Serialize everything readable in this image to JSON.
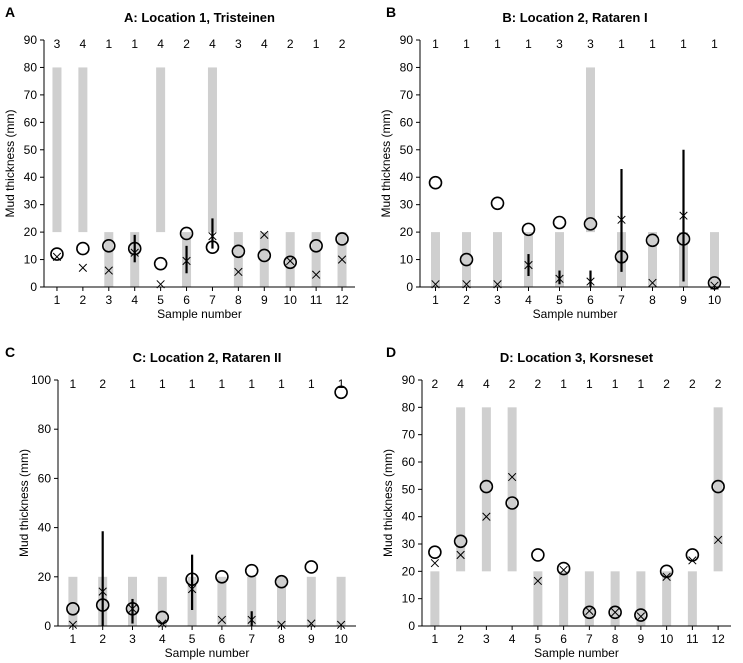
{
  "chart_data": [
    {
      "type": "scatter",
      "letter": "A",
      "title": "A: Location 1, Tristeinen",
      "xlabel": "Sample number",
      "ylabel": "Mud thickness (mm)",
      "ylim": [
        0,
        90
      ],
      "yticks": [
        0,
        10,
        20,
        30,
        40,
        50,
        60,
        70,
        80,
        90
      ],
      "categories": [
        "1",
        "2",
        "3",
        "4",
        "5",
        "6",
        "7",
        "8",
        "9",
        "10",
        "11",
        "12"
      ],
      "counts": [
        "3",
        "4",
        "1",
        "1",
        "4",
        "2",
        "4",
        "3",
        "4",
        "2",
        "1",
        "2"
      ],
      "ranges": [
        [
          20,
          80
        ],
        [
          20,
          80
        ],
        [
          0,
          20
        ],
        [
          0,
          20
        ],
        [
          20,
          80
        ],
        [
          0,
          20
        ],
        [
          20,
          80
        ],
        [
          0,
          20
        ],
        [
          0,
          20
        ],
        [
          0,
          20
        ],
        [
          0,
          20
        ],
        [
          0,
          20
        ]
      ],
      "circles": [
        12,
        14,
        15,
        14,
        8.5,
        19.5,
        14.5,
        13,
        11.5,
        9,
        15,
        17.5
      ],
      "crosses": [
        11,
        7,
        6,
        12.5,
        1,
        9.5,
        18.5,
        5.5,
        19,
        9.5,
        4.5,
        10
      ],
      "error_bars": [
        null,
        null,
        null,
        [
          9,
          19
        ],
        null,
        [
          5,
          15
        ],
        [
          14,
          25
        ],
        null,
        null,
        null,
        null,
        null
      ]
    },
    {
      "type": "scatter",
      "letter": "B",
      "title": "B: Location 2, Rataren I",
      "xlabel": "Sample number",
      "ylabel": "Mud thickness (mm)",
      "ylim": [
        0,
        90
      ],
      "yticks": [
        0,
        10,
        20,
        30,
        40,
        50,
        60,
        70,
        80,
        90
      ],
      "categories": [
        "1",
        "2",
        "3",
        "4",
        "5",
        "6",
        "7",
        "8",
        "9",
        "10"
      ],
      "counts": [
        "1",
        "1",
        "1",
        "1",
        "3",
        "3",
        "1",
        "1",
        "1",
        "1"
      ],
      "ranges": [
        [
          0,
          20
        ],
        [
          0,
          20
        ],
        [
          0,
          20
        ],
        [
          0,
          20
        ],
        [
          0,
          20
        ],
        [
          20,
          80
        ],
        [
          0,
          20
        ],
        [
          0,
          20
        ],
        [
          0,
          20
        ],
        [
          0,
          20
        ]
      ],
      "circles": [
        38,
        10,
        30.5,
        21,
        23.5,
        23,
        11,
        17,
        17.5,
        1.5
      ],
      "crosses": [
        1,
        1,
        1,
        8,
        3,
        2,
        24.5,
        1.5,
        26,
        0.5
      ],
      "error_bars": [
        null,
        null,
        null,
        [
          4,
          12
        ],
        [
          1,
          6
        ],
        [
          0,
          6
        ],
        [
          5.5,
          43
        ],
        null,
        [
          2,
          50
        ],
        null
      ]
    },
    {
      "type": "scatter",
      "letter": "C",
      "title": "C: Location 2, Rataren II",
      "xlabel": "Sample number",
      "ylabel": "Mud thickness (mm)",
      "ylim": [
        0,
        100
      ],
      "yticks": [
        0,
        20,
        40,
        60,
        80,
        100
      ],
      "categories": [
        "1",
        "2",
        "3",
        "4",
        "5",
        "6",
        "7",
        "8",
        "9",
        "10"
      ],
      "counts": [
        "1",
        "2",
        "1",
        "1",
        "1",
        "1",
        "1",
        "1",
        "1",
        "1"
      ],
      "ranges": [
        [
          0,
          20
        ],
        [
          0,
          20
        ],
        [
          0,
          20
        ],
        [
          0,
          20
        ],
        [
          0,
          20
        ],
        [
          0,
          20
        ],
        [
          0,
          20
        ],
        [
          0,
          20
        ],
        [
          0,
          20
        ],
        [
          0,
          20
        ]
      ],
      "circles": [
        7,
        8.5,
        7,
        3.5,
        19,
        20,
        22.5,
        18,
        24,
        95
      ],
      "crosses": [
        0.5,
        14,
        7,
        1,
        15,
        2.5,
        2.5,
        0.5,
        1,
        0.5
      ],
      "error_bars": [
        null,
        [
          0,
          38.5
        ],
        [
          1,
          11
        ],
        null,
        [
          6.5,
          29
        ],
        null,
        [
          0,
          6
        ],
        null,
        null,
        null
      ]
    },
    {
      "type": "scatter",
      "letter": "D",
      "title": "D: Location 3, Korsneset",
      "xlabel": "Sample number",
      "ylabel": "Mud thickness (mm)",
      "ylim": [
        0,
        90
      ],
      "yticks": [
        0,
        10,
        20,
        30,
        40,
        50,
        60,
        70,
        80,
        90
      ],
      "categories": [
        "1",
        "2",
        "3",
        "4",
        "5",
        "6",
        "7",
        "8",
        "9",
        "10",
        "11",
        "12"
      ],
      "counts": [
        "2",
        "4",
        "4",
        "2",
        "2",
        "1",
        "1",
        "1",
        "1",
        "2",
        "2",
        "2"
      ],
      "ranges": [
        [
          0,
          20
        ],
        [
          20,
          80
        ],
        [
          20,
          80
        ],
        [
          20,
          80
        ],
        [
          0,
          20
        ],
        [
          0,
          20
        ],
        [
          0,
          20
        ],
        [
          0,
          20
        ],
        [
          0,
          20
        ],
        [
          0,
          20
        ],
        [
          0,
          20
        ],
        [
          20,
          80
        ]
      ],
      "circles": [
        27,
        31,
        51,
        45,
        26,
        21,
        5,
        5,
        4,
        20,
        26,
        51
      ],
      "crosses": [
        23,
        26,
        40,
        54.5,
        16.5,
        20.5,
        5.5,
        5,
        3.5,
        18,
        24,
        31.5
      ],
      "error_bars": [
        null,
        null,
        null,
        null,
        null,
        null,
        null,
        null,
        null,
        null,
        null,
        null
      ]
    }
  ]
}
